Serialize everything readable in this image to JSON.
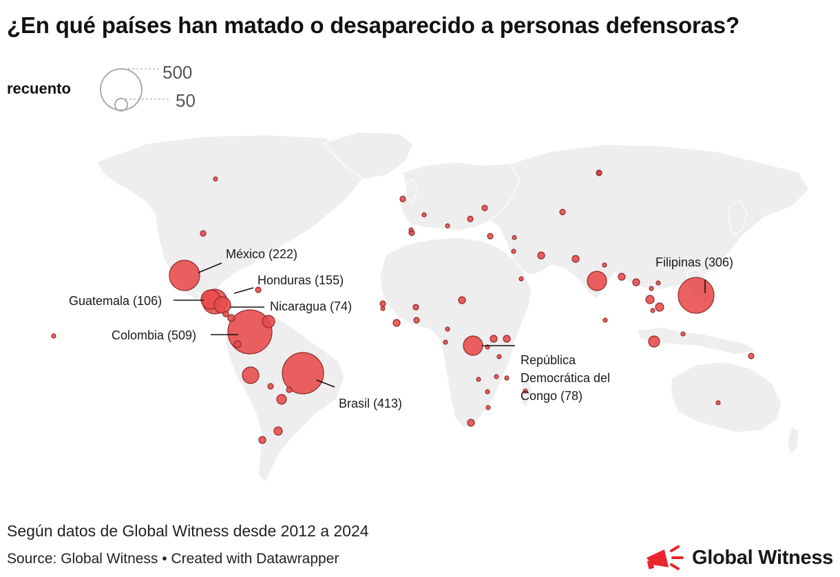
{
  "title": "¿En qué países han matado o desaparecido a personas defensoras?",
  "legend": {
    "label": "recuento",
    "big_value": "500",
    "small_value": "50"
  },
  "colors": {
    "bubble_fill": "#e84a4a",
    "bubble_stroke": "#8b2a2a",
    "land": "#eeeeee",
    "border": "#ffffff",
    "brand_red": "#e8262b"
  },
  "annotations": {
    "mexico": "México (222)",
    "honduras": "Honduras (155)",
    "guatemala": "Guatemala (106)",
    "nicaragua": "Nicaragua (74)",
    "colombia": "Colombia (509)",
    "brasil": "Brasil (413)",
    "filipinas": "Filipinas (306)",
    "rdc_line1": "República",
    "rdc_line2": "Democrática del",
    "rdc_line3": "Congo (78)"
  },
  "subtitle": "Según datos de Global Witness desde 2012 a 2024",
  "source": "Source: Global Witness • Created with Datawrapper",
  "brand": {
    "name": "Global Witness",
    "icon": "megaphone-icon"
  }
}
